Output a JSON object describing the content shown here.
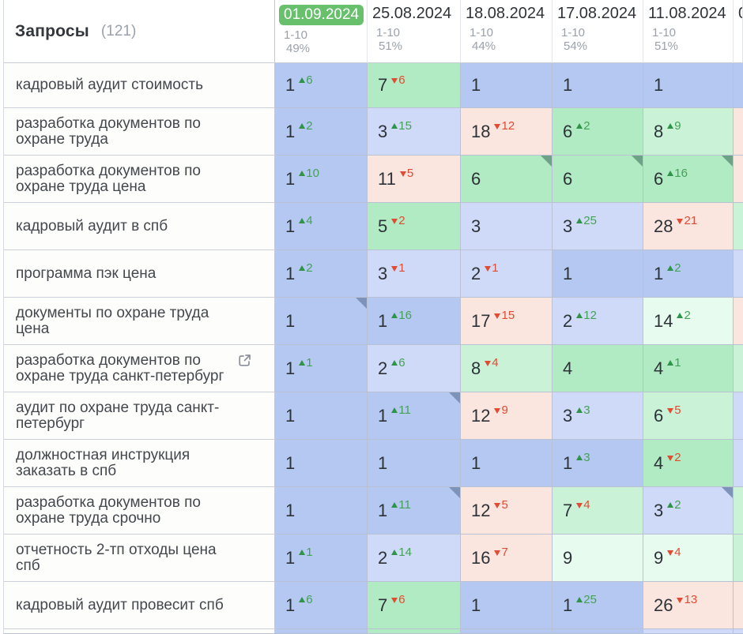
{
  "header": {
    "title": "Запросы",
    "count": "(121)",
    "columns": [
      {
        "date": "01.09.2024",
        "range": "1-10",
        "percent": "49%",
        "selected": true
      },
      {
        "date": "25.08.2024",
        "range": "1-10",
        "percent": "51%"
      },
      {
        "date": "18.08.2024",
        "range": "1-10",
        "percent": "44%"
      },
      {
        "date": "17.08.2024",
        "range": "1-10",
        "percent": "54%"
      },
      {
        "date": "11.08.2024",
        "range": "1-10",
        "percent": "51%"
      },
      {
        "date": "0",
        "range": "",
        "percent": "",
        "partial": true
      }
    ]
  },
  "colors": {
    "badge_green": "#68c06d",
    "pos_blue_strong": "#b4c8f1",
    "pos_blue_light": "#cedaf7",
    "pos_green_strong": "#b0ebc3",
    "pos_green_light": "#c9f2d7",
    "pos_green_pale": "#e8fbef",
    "pos_pink": "#fbe5df",
    "delta_up": "#44a157",
    "delta_down": "#e14b32"
  },
  "rows": [
    {
      "query": "кадровый аудит стоимость",
      "external_link": false,
      "sliver": "blue1",
      "cells": [
        {
          "v": "1",
          "d": 6,
          "dir": "up",
          "bg": "blue1"
        },
        {
          "v": "7",
          "d": 6,
          "dir": "down",
          "bg": "green1"
        },
        {
          "v": "1",
          "bg": "blue1"
        },
        {
          "v": "1",
          "bg": "blue1"
        },
        {
          "v": "1",
          "bg": "blue1"
        }
      ]
    },
    {
      "query": "разработка документов по охране труда",
      "external_link": false,
      "sliver": "pink",
      "cells": [
        {
          "v": "1",
          "d": 2,
          "dir": "up",
          "bg": "blue1"
        },
        {
          "v": "3",
          "d": 15,
          "dir": "up",
          "bg": "blue2"
        },
        {
          "v": "18",
          "d": 12,
          "dir": "down",
          "bg": "pink"
        },
        {
          "v": "6",
          "d": 2,
          "dir": "up",
          "bg": "green1"
        },
        {
          "v": "8",
          "d": 9,
          "dir": "up",
          "bg": "green2"
        }
      ]
    },
    {
      "query": "разработка документов по охране труда цена",
      "external_link": false,
      "sliver": "pink",
      "cells": [
        {
          "v": "1",
          "d": 10,
          "dir": "up",
          "bg": "blue1"
        },
        {
          "v": "11",
          "d": 5,
          "dir": "down",
          "bg": "pink"
        },
        {
          "v": "6",
          "bg": "green1",
          "corner": true
        },
        {
          "v": "6",
          "bg": "green1",
          "corner": true
        },
        {
          "v": "6",
          "d": 16,
          "dir": "up",
          "bg": "green1",
          "corner": true
        }
      ]
    },
    {
      "query": "кадровый аудит в спб",
      "external_link": false,
      "sliver": "green2",
      "cells": [
        {
          "v": "1",
          "d": 4,
          "dir": "up",
          "bg": "blue1"
        },
        {
          "v": "5",
          "d": 2,
          "dir": "down",
          "bg": "green1"
        },
        {
          "v": "3",
          "bg": "blue2"
        },
        {
          "v": "3",
          "d": 25,
          "dir": "up",
          "bg": "blue2"
        },
        {
          "v": "28",
          "d": 21,
          "dir": "down",
          "bg": "pink"
        }
      ]
    },
    {
      "query": "программа пэк цена",
      "external_link": false,
      "sliver": "blue2",
      "cells": [
        {
          "v": "1",
          "d": 2,
          "dir": "up",
          "bg": "blue1"
        },
        {
          "v": "3",
          "d": 1,
          "dir": "down",
          "bg": "blue2"
        },
        {
          "v": "2",
          "d": 1,
          "dir": "down",
          "bg": "blue2"
        },
        {
          "v": "1",
          "bg": "blue1"
        },
        {
          "v": "1",
          "d": 2,
          "dir": "up",
          "bg": "blue1"
        }
      ]
    },
    {
      "query": "документы по охране труда цена",
      "external_link": false,
      "sliver": "pink",
      "cells": [
        {
          "v": "1",
          "bg": "blue1",
          "corner": true
        },
        {
          "v": "1",
          "d": 16,
          "dir": "up",
          "bg": "blue1"
        },
        {
          "v": "17",
          "d": 15,
          "dir": "down",
          "bg": "pink"
        },
        {
          "v": "2",
          "d": 12,
          "dir": "up",
          "bg": "blue2"
        },
        {
          "v": "14",
          "d": 2,
          "dir": "up",
          "bg": "green3"
        }
      ]
    },
    {
      "query": "разработка документов по охране труда санкт-петербург",
      "external_link": true,
      "sliver": "green2",
      "cells": [
        {
          "v": "1",
          "d": 1,
          "dir": "up",
          "bg": "blue1"
        },
        {
          "v": "2",
          "d": 6,
          "dir": "up",
          "bg": "blue2"
        },
        {
          "v": "8",
          "d": 4,
          "dir": "down",
          "bg": "green2"
        },
        {
          "v": "4",
          "bg": "green1"
        },
        {
          "v": "4",
          "d": 1,
          "dir": "up",
          "bg": "green1"
        }
      ]
    },
    {
      "query": "аудит по охране труда санкт-петербург",
      "external_link": false,
      "sliver": "blue2",
      "cells": [
        {
          "v": "1",
          "bg": "blue1"
        },
        {
          "v": "1",
          "d": 11,
          "dir": "up",
          "bg": "blue1",
          "corner": true
        },
        {
          "v": "12",
          "d": 9,
          "dir": "down",
          "bg": "pink"
        },
        {
          "v": "3",
          "d": 3,
          "dir": "up",
          "bg": "blue2"
        },
        {
          "v": "6",
          "d": 5,
          "dir": "down",
          "bg": "green2"
        }
      ]
    },
    {
      "query": "должностная инструкция заказать в спб",
      "external_link": false,
      "sliver": "blue2",
      "cells": [
        {
          "v": "1",
          "bg": "blue1"
        },
        {
          "v": "1",
          "bg": "blue1"
        },
        {
          "v": "1",
          "bg": "blue1"
        },
        {
          "v": "1",
          "d": 3,
          "dir": "up",
          "bg": "blue1"
        },
        {
          "v": "4",
          "d": 2,
          "dir": "down",
          "bg": "green1"
        }
      ]
    },
    {
      "query": "разработка документов по охране труда срочно",
      "external_link": false,
      "sliver": "green2",
      "cells": [
        {
          "v": "1",
          "bg": "blue1"
        },
        {
          "v": "1",
          "d": 11,
          "dir": "up",
          "bg": "blue1",
          "corner": true
        },
        {
          "v": "12",
          "d": 5,
          "dir": "down",
          "bg": "pink"
        },
        {
          "v": "7",
          "d": 4,
          "dir": "down",
          "bg": "green2"
        },
        {
          "v": "3",
          "d": 2,
          "dir": "up",
          "bg": "blue2",
          "corner": true
        }
      ]
    },
    {
      "query": "отчетность 2-тп отходы цена спб",
      "external_link": false,
      "sliver": "green2",
      "cells": [
        {
          "v": "1",
          "d": 1,
          "dir": "up",
          "bg": "blue1"
        },
        {
          "v": "2",
          "d": 14,
          "dir": "up",
          "bg": "blue2"
        },
        {
          "v": "16",
          "d": 7,
          "dir": "down",
          "bg": "pink"
        },
        {
          "v": "9",
          "bg": "green3"
        },
        {
          "v": "9",
          "d": 4,
          "dir": "down",
          "bg": "green3"
        }
      ]
    },
    {
      "query": "кадровый аудит провесит спб",
      "external_link": false,
      "sliver": "pink",
      "cells": [
        {
          "v": "1",
          "d": 6,
          "dir": "up",
          "bg": "blue1"
        },
        {
          "v": "7",
          "d": 6,
          "dir": "down",
          "bg": "green1"
        },
        {
          "v": "1",
          "bg": "blue1"
        },
        {
          "v": "1",
          "d": 25,
          "dir": "up",
          "bg": "blue1"
        },
        {
          "v": "26",
          "d": 13,
          "dir": "down",
          "bg": "pink"
        }
      ]
    }
  ],
  "partial_row": {
    "cells": [
      "blue1",
      "green1",
      "blue1",
      "blue1",
      "blue2"
    ],
    "sliver": "blue2"
  }
}
